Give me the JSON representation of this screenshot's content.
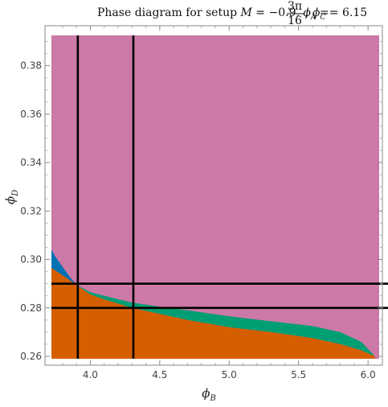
{
  "chart_data": {
    "type": "area",
    "title": {
      "prefix": "Phase diagram for setup ",
      "m_symbol": "M",
      "m_value": " = −0.9, ",
      "phi_a_symbol": "ϕ",
      "phi_a_sub": "A",
      "phi_a_eq": " = ",
      "phi_a_num": "3π",
      "phi_a_den": "16",
      "phi_c_sep": ", ",
      "phi_c_symbol": "ϕ",
      "phi_c_sub": "C",
      "phi_c_value": " = 6.15"
    },
    "xlabel": {
      "symbol": "ϕ",
      "sub": "B"
    },
    "ylabel": {
      "symbol": "ϕ",
      "sub": "D"
    },
    "xlim": [
      3.72,
      6.08
    ],
    "ylim": [
      0.259,
      0.3925
    ],
    "x_ticks": [
      4.0,
      4.5,
      5.0,
      5.5,
      6.0
    ],
    "x_tick_labels": [
      "4.0",
      "4.5",
      "5.0",
      "5.5",
      "6.0"
    ],
    "y_ticks": [
      0.26,
      0.28,
      0.3,
      0.32,
      0.34,
      0.36,
      0.38
    ],
    "y_tick_labels": [
      "0.26",
      "0.28",
      "0.30",
      "0.32",
      "0.34",
      "0.36",
      "0.38"
    ],
    "colors": {
      "background_region": "#cc79a7",
      "lower_region": "#d55e00",
      "middle_band": "#009e73",
      "upper_left_region": "#0072b2",
      "lines": "#000000"
    },
    "boundaries": {
      "lower_top": [
        [
          3.72,
          0.2965
        ],
        [
          3.8,
          0.2935
        ],
        [
          3.9,
          0.2895
        ],
        [
          4.0,
          0.2855
        ],
        [
          4.1,
          0.2835
        ],
        [
          4.3,
          0.28
        ],
        [
          4.5,
          0.2775
        ],
        [
          4.7,
          0.275
        ],
        [
          5.0,
          0.272
        ],
        [
          5.3,
          0.27
        ],
        [
          5.6,
          0.2675
        ],
        [
          5.8,
          0.265
        ],
        [
          5.95,
          0.2625
        ],
        [
          6.05,
          0.26
        ]
      ],
      "middle_top": [
        [
          3.9,
          0.2895
        ],
        [
          4.0,
          0.2865
        ],
        [
          4.1,
          0.285
        ],
        [
          4.3,
          0.2822
        ],
        [
          4.5,
          0.2805
        ],
        [
          4.7,
          0.279
        ],
        [
          5.0,
          0.2765
        ],
        [
          5.3,
          0.2745
        ],
        [
          5.6,
          0.2725
        ],
        [
          5.8,
          0.27
        ],
        [
          5.95,
          0.266
        ],
        [
          6.05,
          0.26
        ]
      ],
      "blue_top": [
        [
          3.72,
          0.304
        ],
        [
          3.75,
          0.301
        ],
        [
          3.8,
          0.297
        ],
        [
          3.85,
          0.293
        ],
        [
          3.9,
          0.2895
        ]
      ]
    },
    "vertical_lines": [
      3.91,
      4.31
    ],
    "horizontal_lines": [
      0.29,
      0.28
    ]
  }
}
